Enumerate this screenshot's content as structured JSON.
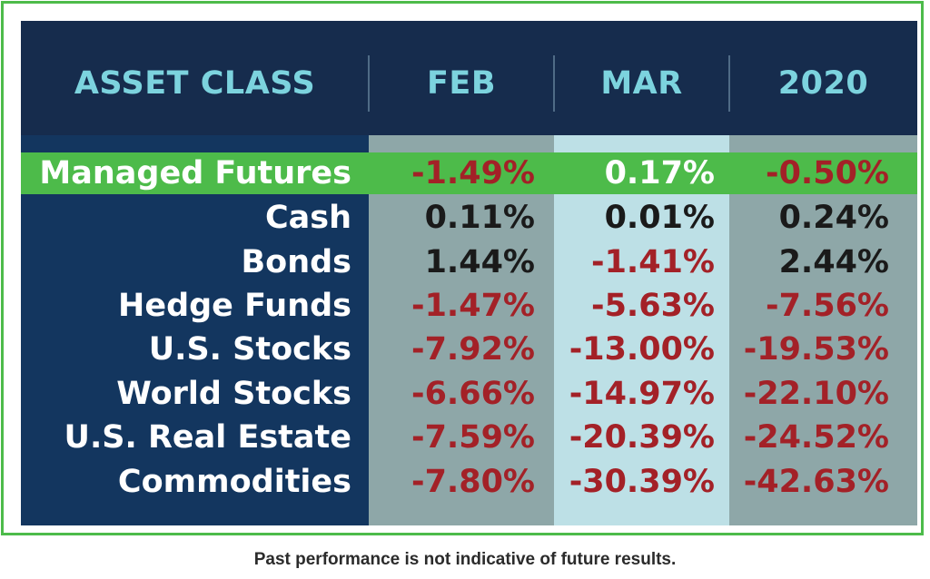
{
  "footnote": "Past performance is not indicative of future results.",
  "colors": {
    "header_text": "#7cd3de",
    "highlight_row": "#4dbb4a",
    "positive_text": "#1a1a1a",
    "negative_text": "#a32127",
    "highlight_positive_text": "#ffffff",
    "label_text": "#ffffff"
  },
  "chart_data": {
    "type": "table",
    "columns": [
      "ASSET CLASS",
      "FEB",
      "MAR",
      "2020"
    ],
    "highlighted_row": "Managed Futures",
    "rows": [
      {
        "label": "Managed Futures",
        "values": [
          "-1.49%",
          "0.17%",
          "-0.50%"
        ]
      },
      {
        "label": "Cash",
        "values": [
          "0.11%",
          "0.01%",
          "0.24%"
        ]
      },
      {
        "label": "Bonds",
        "values": [
          "1.44%",
          "-1.41%",
          "2.44%"
        ]
      },
      {
        "label": "Hedge Funds",
        "values": [
          "-1.47%",
          "-5.63%",
          "-7.56%"
        ]
      },
      {
        "label": "U.S. Stocks",
        "values": [
          "-7.92%",
          "-13.00%",
          "-19.53%"
        ]
      },
      {
        "label": "World Stocks",
        "values": [
          "-6.66%",
          "-14.97%",
          "-22.10%"
        ]
      },
      {
        "label": "U.S. Real Estate",
        "values": [
          "-7.59%",
          "-20.39%",
          "-24.52%"
        ]
      },
      {
        "label": "Commodities",
        "values": [
          "-7.80%",
          "-30.39%",
          "-42.63%"
        ]
      }
    ]
  }
}
